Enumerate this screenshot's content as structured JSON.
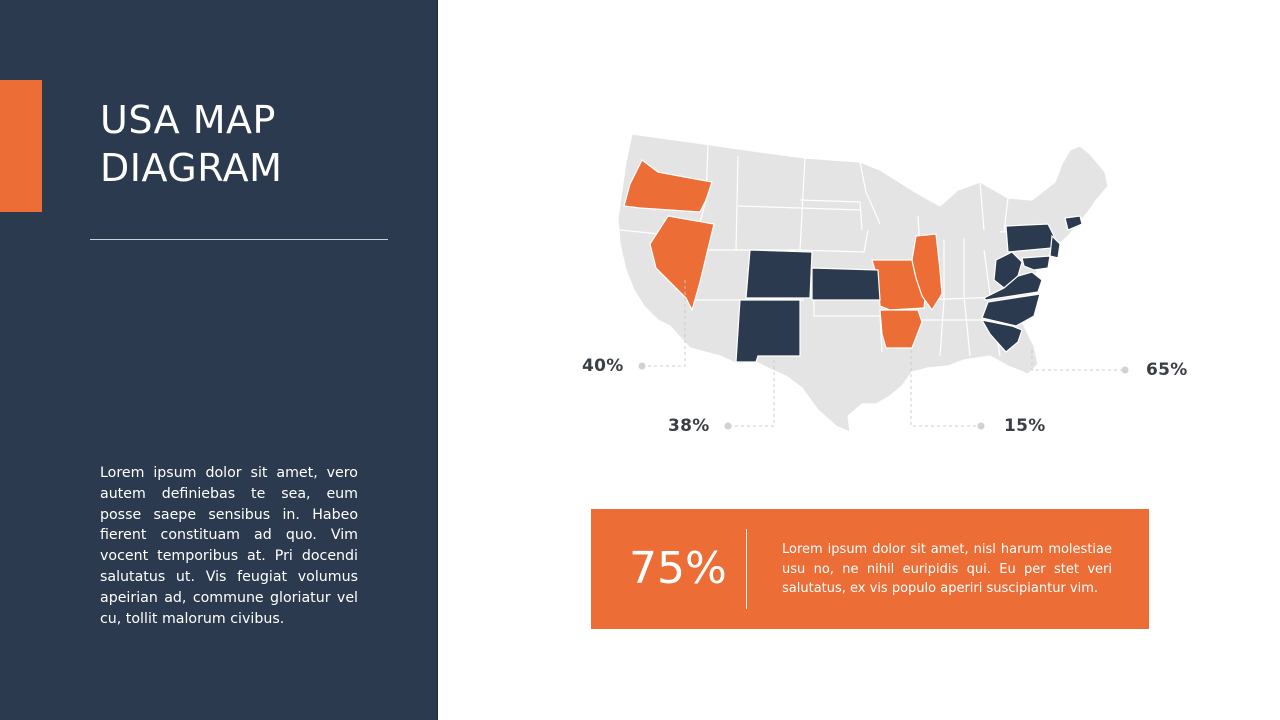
{
  "colors": {
    "navy": "#2b3a4e",
    "accent": "#ec6d35",
    "land": "#e4e4e4",
    "border": "#ffffff",
    "leader": "#cccccc"
  },
  "slide": {
    "title_line1": "USA MAP",
    "title_line2": "DIAGRAM",
    "body": "Lorem ipsum dolor sit amet, vero autem definiebas te sea, eum posse saepe sensibus in. Habeo fierent constituam ad quo. Vim vocent temporibus at. Pri docendi salutatus ut. Vis feugiat volumus apeirian ad, commune gloriatur vel cu, tollit malorum civibus."
  },
  "callouts": [
    {
      "label": "40%",
      "id": "west"
    },
    {
      "label": "38%",
      "id": "southwest"
    },
    {
      "label": "15%",
      "id": "south"
    },
    {
      "label": "65%",
      "id": "east"
    }
  ],
  "stat": {
    "value": "75%",
    "text": "Lorem ipsum dolor sit amet, nisl harum molestiae usu no, ne nihil euripidis qui. Eu per stet veri salutatus, ex vis populo aperiri suscipiantur vim."
  }
}
